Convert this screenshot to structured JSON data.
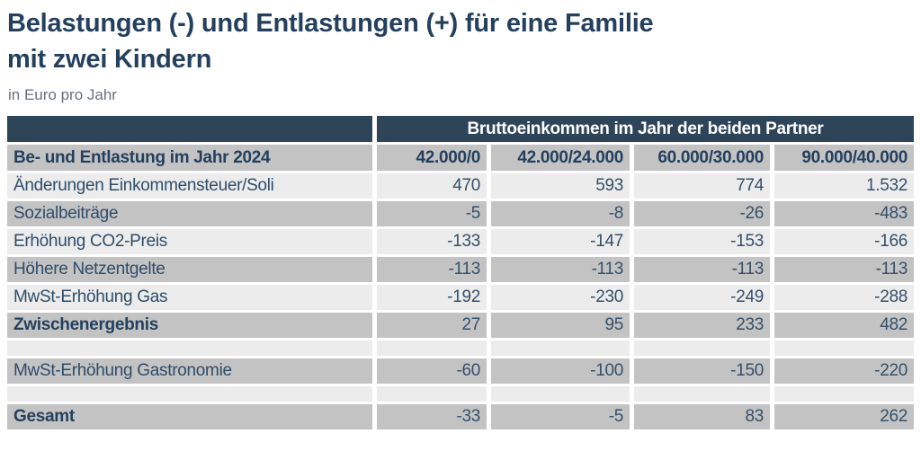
{
  "header": {
    "title_line1": "Belastungen (-) und Entlastungen (+) für eine Familie",
    "title_line2": "mit zwei Kindern",
    "subtitle": "in Euro pro Jahr"
  },
  "table": {
    "group_header": "Bruttoeinkommen im Jahr der beiden Partner",
    "row_header_label": "Be- und Entlastung im Jahr 2024",
    "columns": [
      "42.000/0",
      "42.000/24.000",
      "60.000/30.000",
      "90.000/40.000"
    ],
    "rows": [
      {
        "label": "Änderungen Einkommensteuer/Soli",
        "values": [
          "470",
          "593",
          "774",
          "1.532"
        ],
        "bold": false,
        "spacer": false
      },
      {
        "label": "Sozialbeiträge",
        "values": [
          "-5",
          "-8",
          "-26",
          "-483"
        ],
        "bold": false,
        "spacer": false
      },
      {
        "label": "Erhöhung CO2-Preis",
        "values": [
          "-133",
          "-147",
          "-153",
          "-166"
        ],
        "bold": false,
        "spacer": false
      },
      {
        "label": "Höhere Netzentgelte",
        "values": [
          "-113",
          "-113",
          "-113",
          "-113"
        ],
        "bold": false,
        "spacer": false
      },
      {
        "label": "MwSt-Erhöhung Gas",
        "values": [
          "-192",
          "-230",
          "-249",
          "-288"
        ],
        "bold": false,
        "spacer": false
      },
      {
        "label": "Zwischenergebnis",
        "values": [
          "27",
          "95",
          "233",
          "482"
        ],
        "bold": true,
        "spacer": false
      },
      {
        "label": "",
        "values": [
          "",
          "",
          "",
          ""
        ],
        "bold": false,
        "spacer": true
      },
      {
        "label": "MwSt-Erhöhung Gastronomie",
        "values": [
          "-60",
          "-100",
          "-150",
          "-220"
        ],
        "bold": false,
        "spacer": false
      },
      {
        "label": "",
        "values": [
          "",
          "",
          "",
          ""
        ],
        "bold": false,
        "spacer": true
      },
      {
        "label": "Gesamt",
        "values": [
          "-33",
          "-5",
          "83",
          "262"
        ],
        "bold": true,
        "spacer": false
      }
    ]
  },
  "colors": {
    "header_blue": "#2e4459",
    "title_blue": "#24405e",
    "row_light": "#ececec",
    "row_dark": "#c3c3c3",
    "cell_text": "#2f4d6a",
    "subtitle_gray": "#66727e",
    "background": "#ffffff"
  },
  "chart_data": {
    "type": "table",
    "title": "Belastungen (-) und Entlastungen (+) für eine Familie mit zwei Kindern",
    "subtitle": "in Euro pro Jahr",
    "column_group_label": "Bruttoeinkommen im Jahr der beiden Partner",
    "row_dimension": "Be- und Entlastung im Jahr 2024",
    "categories": [
      "42.000/0",
      "42.000/24.000",
      "60.000/30.000",
      "90.000/40.000"
    ],
    "series": [
      {
        "name": "Änderungen Einkommensteuer/Soli",
        "values": [
          470,
          593,
          774,
          1532
        ]
      },
      {
        "name": "Sozialbeiträge",
        "values": [
          -5,
          -8,
          -26,
          -483
        ]
      },
      {
        "name": "Erhöhung CO2-Preis",
        "values": [
          -133,
          -147,
          -153,
          -166
        ]
      },
      {
        "name": "Höhere Netzentgelte",
        "values": [
          -113,
          -113,
          -113,
          -113
        ]
      },
      {
        "name": "MwSt-Erhöhung Gas",
        "values": [
          -192,
          -230,
          -249,
          -288
        ]
      },
      {
        "name": "Zwischenergebnis",
        "values": [
          27,
          95,
          233,
          482
        ]
      },
      {
        "name": "MwSt-Erhöhung Gastronomie",
        "values": [
          -60,
          -100,
          -150,
          -220
        ]
      },
      {
        "name": "Gesamt",
        "values": [
          -33,
          -5,
          83,
          262
        ]
      }
    ]
  }
}
